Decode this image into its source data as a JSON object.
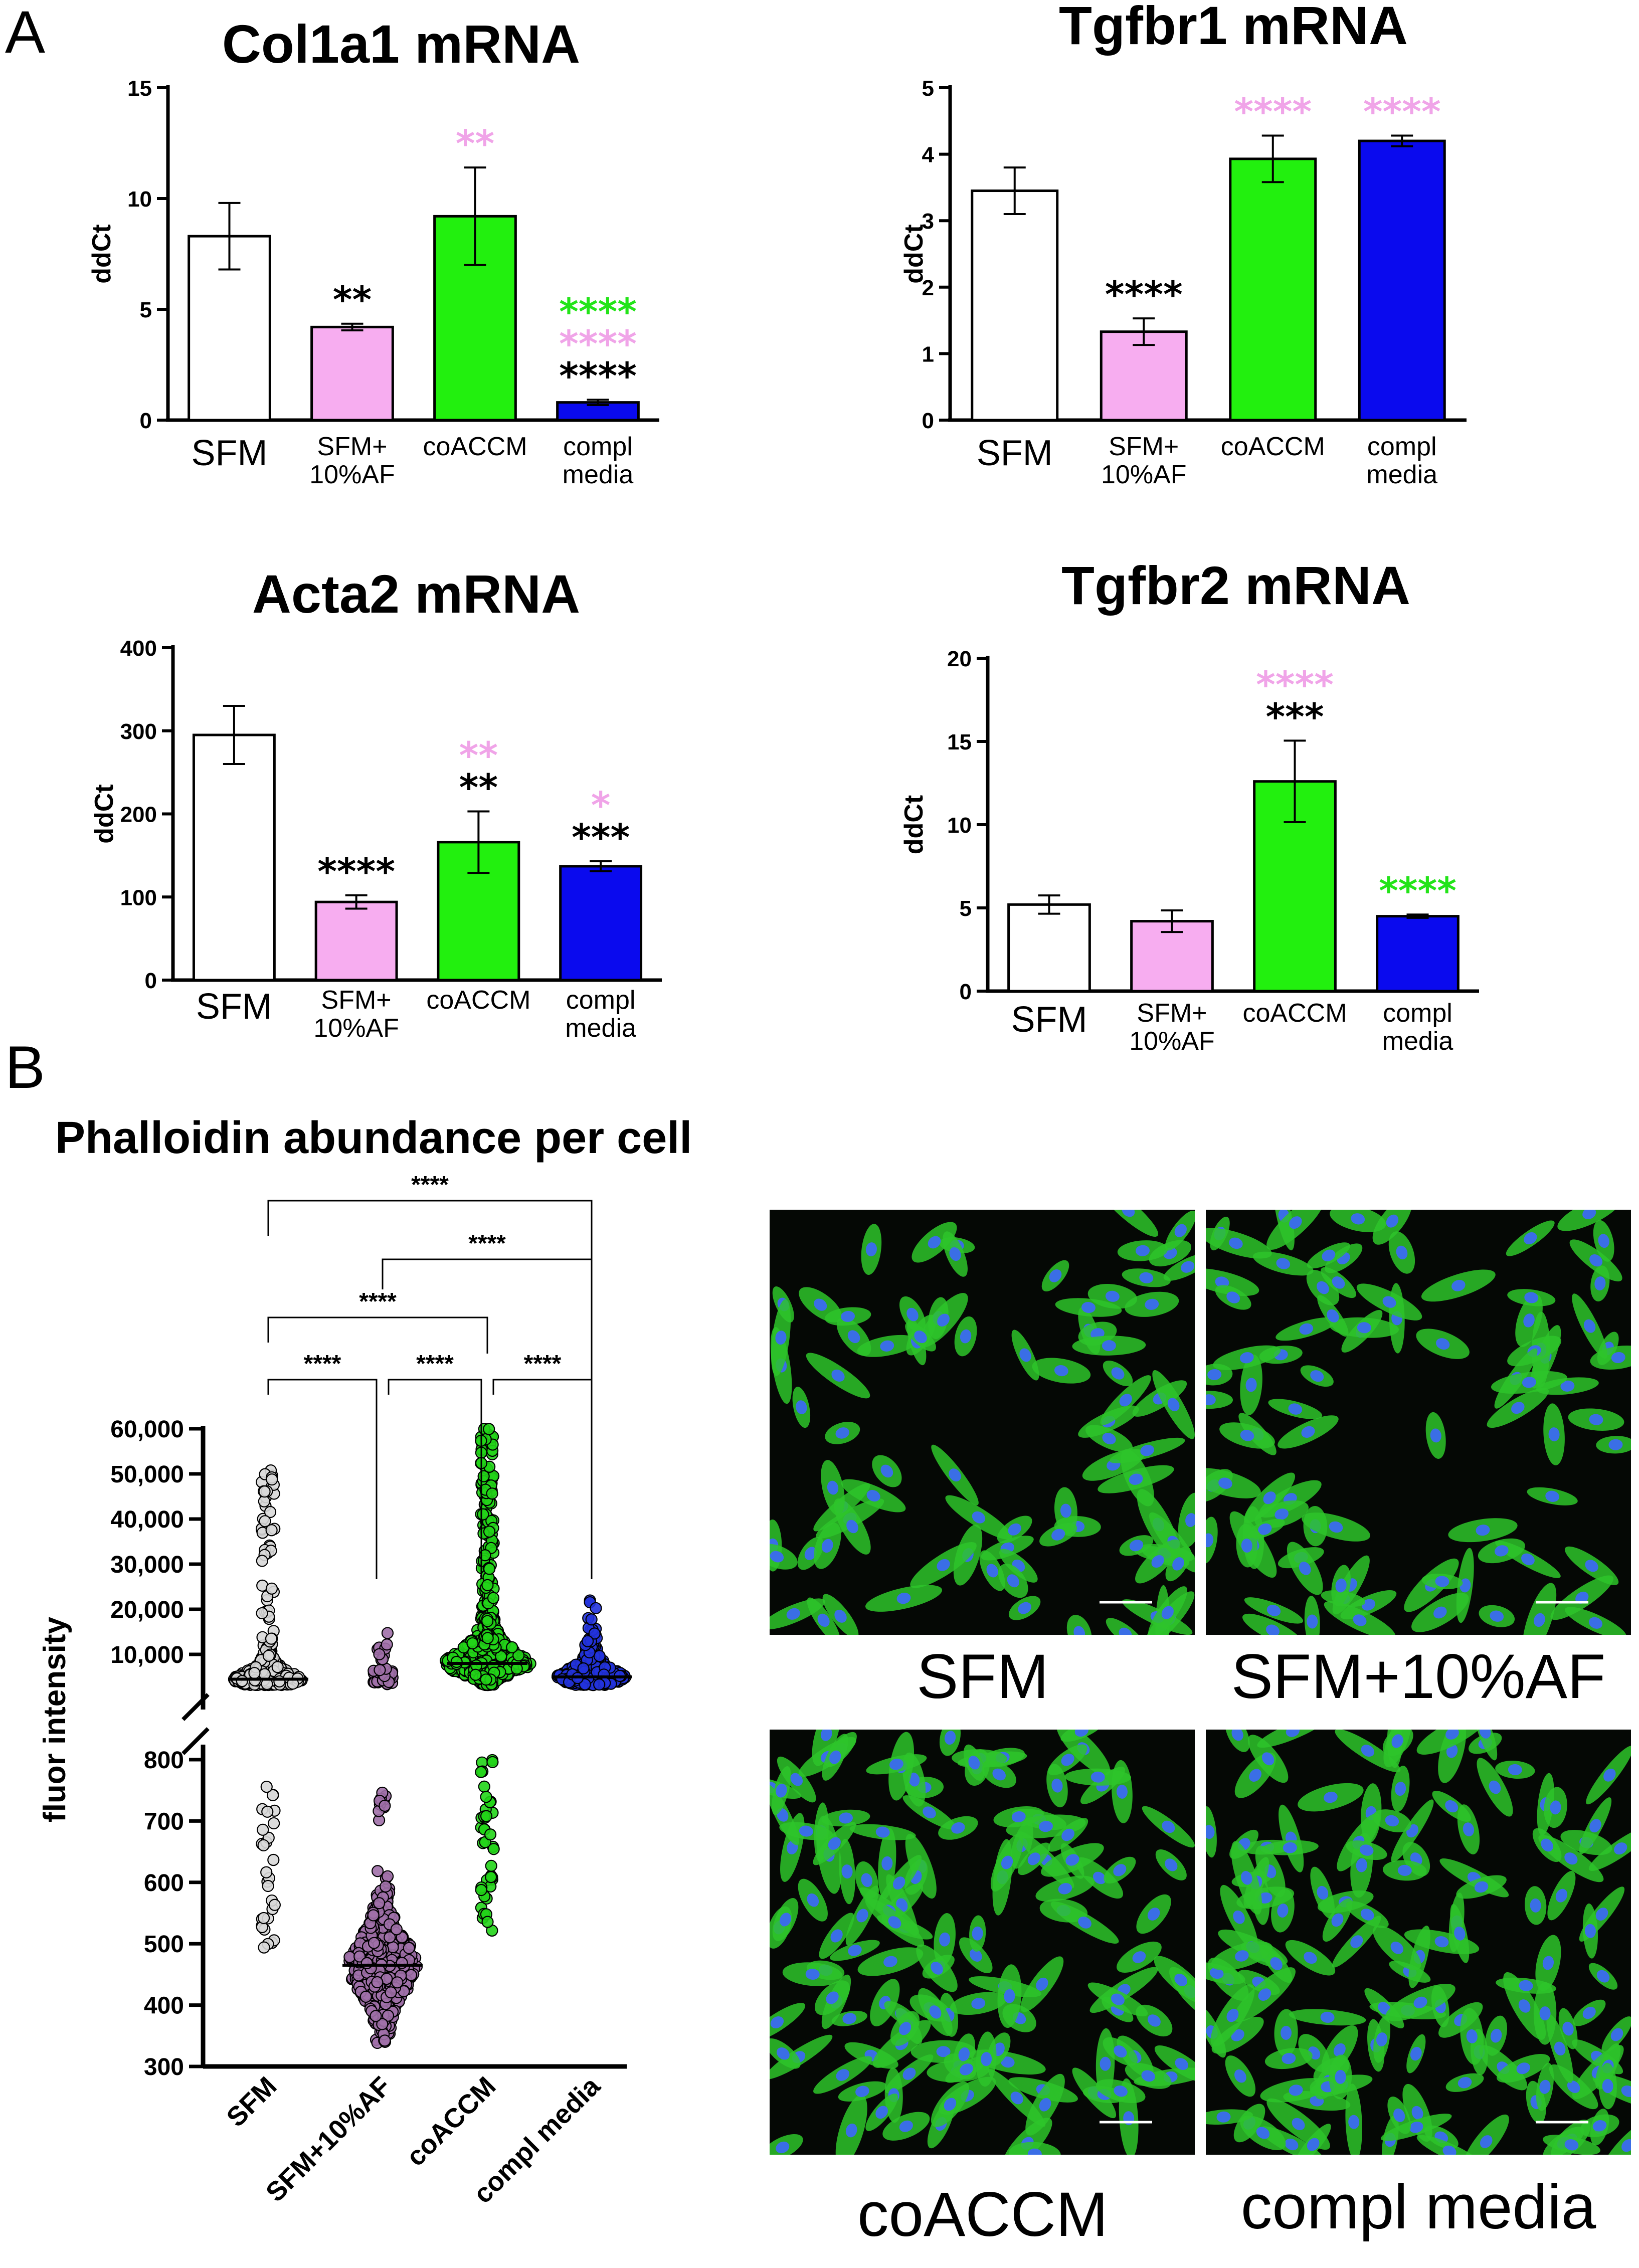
{
  "panel_labels": {
    "a": "A",
    "b": "B"
  },
  "colors": {
    "SFM": "#ffffff",
    "SFM+10%AF": "#f7adf0",
    "coACCM": "#22f00e",
    "compl media": "#0a0aee",
    "pink_star": "#f0a4e8",
    "green_star": "#22e418",
    "black": "#000000",
    "scatter_SFM": "#d8d8d8",
    "scatter_SFM+10%AF": "#a070a8",
    "scatter_coACCM": "#22d418",
    "scatter_compl media": "#2233dd",
    "stain_actin": "#2ec42a",
    "stain_nuclei": "#3a6ee6",
    "image_background": "#050805"
  },
  "chart_data": [
    {
      "id": "col1a1",
      "type": "bar",
      "title": "Col1a1  mRNA",
      "ylabel": "ddCt",
      "ylim": [
        0,
        15
      ],
      "yticks": [
        "0",
        "5",
        "10",
        "15"
      ],
      "categories": [
        [
          "SFM"
        ],
        [
          "SFM+",
          "10%AF"
        ],
        [
          "coACCM"
        ],
        [
          "compl",
          "media"
        ]
      ],
      "values": [
        8.3,
        4.2,
        9.2,
        0.8
      ],
      "errors": [
        1.5,
        0.15,
        2.2,
        0.12
      ],
      "annotations": [
        [],
        [
          {
            "text": "**",
            "color": "black"
          }
        ],
        [
          {
            "text": "**",
            "color": "pink_star"
          }
        ],
        [
          {
            "text": "****",
            "color": "black"
          },
          {
            "text": "****",
            "color": "pink_star"
          },
          {
            "text": "****",
            "color": "green_star"
          }
        ]
      ]
    },
    {
      "id": "tgfbr1",
      "type": "bar",
      "title": "Tgfbr1  mRNA",
      "ylabel": "ddCt",
      "ylim": [
        0,
        5
      ],
      "yticks": [
        "0",
        "1",
        "2",
        "3",
        "4",
        "5"
      ],
      "categories": [
        [
          "SFM"
        ],
        [
          "SFM+",
          "10%AF"
        ],
        [
          "coACCM"
        ],
        [
          "compl",
          "media"
        ]
      ],
      "values": [
        3.45,
        1.33,
        3.93,
        4.2
      ],
      "errors": [
        0.35,
        0.2,
        0.35,
        0.08
      ],
      "annotations": [
        [],
        [
          {
            "text": "****",
            "color": "black"
          }
        ],
        [
          {
            "text": "****",
            "color": "pink_star"
          }
        ],
        [
          {
            "text": "****",
            "color": "pink_star"
          }
        ]
      ]
    },
    {
      "id": "acta2",
      "type": "bar",
      "title": "Acta2  mRNA",
      "ylabel": "ddCt",
      "ylim": [
        0,
        400
      ],
      "yticks": [
        "0",
        "100",
        "200",
        "300",
        "400"
      ],
      "categories": [
        [
          "SFM"
        ],
        [
          "SFM+",
          "10%AF"
        ],
        [
          "coACCM"
        ],
        [
          "compl",
          "media"
        ]
      ],
      "values": [
        295,
        94,
        166,
        137
      ],
      "errors": [
        35,
        8,
        37,
        6
      ],
      "annotations": [
        [],
        [
          {
            "text": "****",
            "color": "black"
          }
        ],
        [
          {
            "text": "**",
            "color": "black"
          },
          {
            "text": "**",
            "color": "pink_star"
          }
        ],
        [
          {
            "text": "***",
            "color": "black"
          },
          {
            "text": "*",
            "color": "pink_star"
          }
        ]
      ]
    },
    {
      "id": "tgfbr2",
      "type": "bar",
      "title": "Tgfbr2  mRNA",
      "ylabel": "ddCt",
      "ylim": [
        0,
        20
      ],
      "yticks": [
        "0",
        "5",
        "10",
        "15",
        "20"
      ],
      "categories": [
        [
          "SFM"
        ],
        [
          "SFM+",
          "10%AF"
        ],
        [
          "coACCM"
        ],
        [
          "compl",
          "media"
        ]
      ],
      "values": [
        5.2,
        4.2,
        12.6,
        4.5
      ],
      "errors": [
        0.55,
        0.65,
        2.45,
        0.1
      ],
      "annotations": [
        [],
        [],
        [
          {
            "text": "***",
            "color": "black"
          },
          {
            "text": "****",
            "color": "pink_star"
          }
        ],
        [
          {
            "text": "****",
            "color": "green_star"
          }
        ]
      ]
    },
    {
      "id": "phalloidin",
      "type": "scatter",
      "title": "Phalloidin abundance per cell",
      "ylabel": "fluor intensity",
      "categories": [
        "SFM",
        "SFM+10%AF",
        "coACCM",
        "compl  media"
      ],
      "y_axis_break": true,
      "upper_ticks": [
        "10,000",
        "20,000",
        "30,000",
        "40,000",
        "50,000",
        "60,000"
      ],
      "lower_ticks": [
        "300",
        "400",
        "500",
        "600",
        "700",
        "800"
      ],
      "medians": [
        4500,
        465,
        8000,
        5000
      ],
      "distributions": [
        {
          "median": 4500,
          "min": 490,
          "max": 53000,
          "lower_range": [
            490,
            760
          ]
        },
        {
          "median": 465,
          "min": 335,
          "max": 16000,
          "lower_range": [
            335,
            750
          ]
        },
        {
          "median": 8000,
          "min": 520,
          "max": 60000,
          "lower_range": [
            520,
            800
          ]
        },
        {
          "median": 5000,
          "min": 1500,
          "max": 22500,
          "lower_range": []
        }
      ],
      "significance": [
        {
          "from": 0,
          "to": 3,
          "text": "****"
        },
        {
          "from": 1,
          "to": 3,
          "text": "****"
        },
        {
          "from": 0,
          "to": 2,
          "text": "****"
        },
        {
          "from": 0,
          "to": 1,
          "text": "****"
        },
        {
          "from": 1,
          "to": 2,
          "text": "****"
        },
        {
          "from": 2,
          "to": 3,
          "text": "****"
        }
      ]
    }
  ],
  "micrographs": [
    {
      "label": "SFM",
      "density": "medium"
    },
    {
      "label": "SFM+10%AF",
      "density": "medium"
    },
    {
      "label": "coACCM",
      "density": "high"
    },
    {
      "label": "compl  media",
      "density": "high"
    }
  ]
}
